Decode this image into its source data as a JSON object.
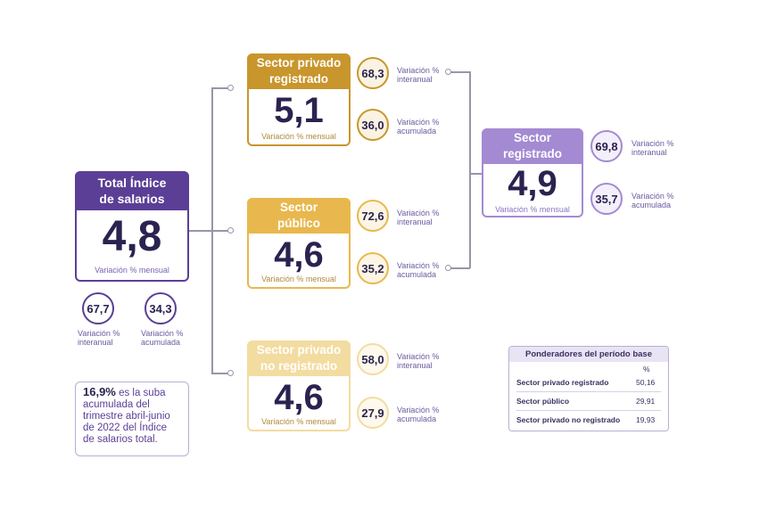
{
  "colors": {
    "purple": "#5b3f96",
    "lilac": "#a48ad2",
    "gold": "#c8962c",
    "amber": "#e8b84e",
    "cream": "#f3dca0",
    "line": "#9a94a8"
  },
  "total": {
    "title_line1": "Total Índice",
    "title_line2": "de salarios",
    "value": "4,8",
    "sub": "Variación % mensual",
    "interanual_value": "67,7",
    "interanual_label_1": "Variación %",
    "interanual_label_2": "interanual",
    "acumulada_value": "34,3",
    "acumulada_label_1": "Variación %",
    "acumulada_label_2": "acumulada"
  },
  "privado": {
    "title_line1": "Sector privado",
    "title_line2": "registrado",
    "value": "5,1",
    "sub": "Variación % mensual",
    "interanual_value": "68,3",
    "interanual_label_1": "Variación %",
    "interanual_label_2": "interanual",
    "acumulada_value": "36,0",
    "acumulada_label_1": "Variación %",
    "acumulada_label_2": "acumulada"
  },
  "publico": {
    "title_line1": "Sector",
    "title_line2": "público",
    "value": "4,6",
    "sub": "Variación % mensual",
    "interanual_value": "72,6",
    "interanual_label_1": "Variación %",
    "interanual_label_2": "interanual",
    "acumulada_value": "35,2",
    "acumulada_label_1": "Variación %",
    "acumulada_label_2": "acumulada"
  },
  "no_registrado": {
    "title_line1": "Sector privado",
    "title_line2": "no registrado",
    "value": "4,6",
    "sub": "Variación % mensual",
    "interanual_value": "58,0",
    "interanual_label_1": "Variación %",
    "interanual_label_2": "interanual",
    "acumulada_value": "27,9",
    "acumulada_label_1": "Variación %",
    "acumulada_label_2": "acumulada"
  },
  "registrado": {
    "title_line1": "Sector",
    "title_line2": "registrado",
    "value": "4,9",
    "sub": "Variación % mensual",
    "interanual_value": "69,8",
    "interanual_label_1": "Variación %",
    "interanual_label_2": "interanual",
    "acumulada_value": "35,7",
    "acumulada_label_1": "Variación %",
    "acumulada_label_2": "acumulada"
  },
  "note": {
    "highlight": "16,9%",
    "text_1": " es la suba",
    "line_2": "acumulada del",
    "line_3": "trimestre abril-junio",
    "line_4": "de 2022 del Índice",
    "line_5": "de salarios total."
  },
  "ponderadores": {
    "title": "Ponderadores del período base",
    "unit": "%",
    "rows": [
      {
        "label": "Sector privado registrado",
        "value": "50,16"
      },
      {
        "label": "Sector público",
        "value": "29,91"
      },
      {
        "label": "Sector privado no registrado",
        "value": "19,93"
      }
    ]
  }
}
